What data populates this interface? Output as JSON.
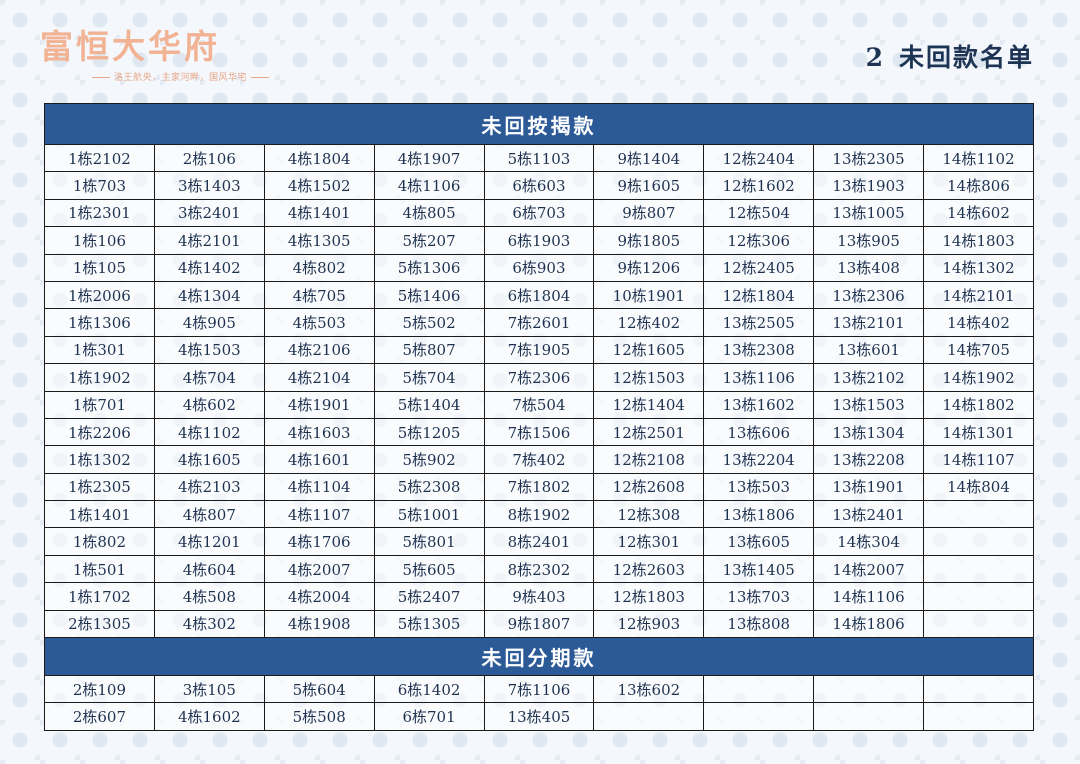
{
  "logo": {
    "text": "富恒大华府",
    "slogan": "洛王航央，主家河畔，国风华宅"
  },
  "page_title": {
    "number": "2",
    "text": "未回款名单"
  },
  "sections": [
    {
      "title": "未回按揭款",
      "rows": [
        [
          "1栋2102",
          "2栋106",
          "4栋1804",
          "4栋1907",
          "5栋1103",
          "9栋1404",
          "12栋2404",
          "13栋2305",
          "14栋1102"
        ],
        [
          "1栋703",
          "3栋1403",
          "4栋1502",
          "4栋1106",
          "6栋603",
          "9栋1605",
          "12栋1602",
          "13栋1903",
          "14栋806"
        ],
        [
          "1栋2301",
          "3栋2401",
          "4栋1401",
          "4栋805",
          "6栋703",
          "9栋807",
          "12栋504",
          "13栋1005",
          "14栋602"
        ],
        [
          "1栋106",
          "4栋2101",
          "4栋1305",
          "5栋207",
          "6栋1903",
          "9栋1805",
          "12栋306",
          "13栋905",
          "14栋1803"
        ],
        [
          "1栋105",
          "4栋1402",
          "4栋802",
          "5栋1306",
          "6栋903",
          "9栋1206",
          "12栋2405",
          "13栋408",
          "14栋1302"
        ],
        [
          "1栋2006",
          "4栋1304",
          "4栋705",
          "5栋1406",
          "6栋1804",
          "10栋1901",
          "12栋1804",
          "13栋2306",
          "14栋2101"
        ],
        [
          "1栋1306",
          "4栋905",
          "4栋503",
          "5栋502",
          "7栋2601",
          "12栋402",
          "13栋2505",
          "13栋2101",
          "14栋402"
        ],
        [
          "1栋301",
          "4栋1503",
          "4栋2106",
          "5栋807",
          "7栋1905",
          "12栋1605",
          "13栋2308",
          "13栋601",
          "14栋705"
        ],
        [
          "1栋1902",
          "4栋704",
          "4栋2104",
          "5栋704",
          "7栋2306",
          "12栋1503",
          "13栋1106",
          "13栋2102",
          "14栋1902"
        ],
        [
          "1栋701",
          "4栋602",
          "4栋1901",
          "5栋1404",
          "7栋504",
          "12栋1404",
          "13栋1602",
          "13栋1503",
          "14栋1802"
        ],
        [
          "1栋2206",
          "4栋1102",
          "4栋1603",
          "5栋1205",
          "7栋1506",
          "12栋2501",
          "13栋606",
          "13栋1304",
          "14栋1301"
        ],
        [
          "1栋1302",
          "4栋1605",
          "4栋1601",
          "5栋902",
          "7栋402",
          "12栋2108",
          "13栋2204",
          "13栋2208",
          "14栋1107"
        ],
        [
          "1栋2305",
          "4栋2103",
          "4栋1104",
          "5栋2308",
          "7栋1802",
          "12栋2608",
          "13栋503",
          "13栋1901",
          "14栋804"
        ],
        [
          "1栋1401",
          "4栋807",
          "4栋1107",
          "5栋1001",
          "8栋1902",
          "12栋308",
          "13栋1806",
          "13栋2401",
          ""
        ],
        [
          "1栋802",
          "4栋1201",
          "4栋1706",
          "5栋801",
          "8栋2401",
          "12栋301",
          "13栋605",
          "14栋304",
          ""
        ],
        [
          "1栋501",
          "4栋604",
          "4栋2007",
          "5栋605",
          "8栋2302",
          "12栋2603",
          "13栋1405",
          "14栋2007",
          ""
        ],
        [
          "1栋1702",
          "4栋508",
          "4栋2004",
          "5栋2407",
          "9栋403",
          "12栋1803",
          "13栋703",
          "14栋1106",
          ""
        ],
        [
          "2栋1305",
          "4栋302",
          "4栋1908",
          "5栋1305",
          "9栋1807",
          "12栋903",
          "13栋808",
          "14栋1806",
          ""
        ]
      ]
    },
    {
      "title": "未回分期款",
      "rows": [
        [
          "2栋109",
          "3栋105",
          "5栋604",
          "6栋1402",
          "7栋1106",
          "13栋602",
          "",
          "",
          ""
        ],
        [
          "2栋607",
          "4栋1602",
          "5栋508",
          "6栋701",
          "13栋405",
          "",
          "",
          "",
          ""
        ]
      ]
    }
  ]
}
